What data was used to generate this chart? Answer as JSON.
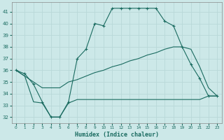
{
  "xlabel": "Humidex (Indice chaleur)",
  "bg_color": "#cce8e8",
  "grid_color": "#b8d8d8",
  "line_color": "#1a6b60",
  "xlim": [
    -0.5,
    23.5
  ],
  "ylim": [
    31.5,
    41.8
  ],
  "yticks": [
    32,
    33,
    34,
    35,
    36,
    37,
    38,
    39,
    40,
    41
  ],
  "xticks": [
    0,
    1,
    2,
    3,
    4,
    5,
    6,
    7,
    8,
    9,
    10,
    11,
    12,
    13,
    14,
    15,
    16,
    17,
    18,
    19,
    20,
    21,
    22,
    23
  ],
  "series": [
    {
      "x": [
        0,
        1,
        2,
        3,
        4,
        5,
        6,
        7,
        8,
        9,
        10,
        11,
        12,
        13,
        14,
        15,
        16,
        17,
        18,
        19,
        20,
        21,
        22,
        23
      ],
      "y": [
        36.0,
        35.7,
        34.8,
        33.3,
        32.0,
        32.0,
        33.3,
        37.0,
        37.8,
        40.0,
        39.8,
        41.3,
        41.3,
        41.3,
        41.3,
        41.3,
        41.3,
        40.2,
        39.8,
        38.0,
        36.5,
        35.3,
        33.8,
        33.8
      ],
      "marker": "+"
    },
    {
      "x": [
        0,
        1,
        2,
        3,
        4,
        5,
        6,
        7,
        8,
        9,
        10,
        11,
        12,
        13,
        14,
        15,
        16,
        17,
        18,
        19,
        20,
        21,
        22,
        23
      ],
      "y": [
        36.0,
        35.5,
        35.0,
        34.5,
        34.5,
        34.5,
        35.0,
        35.2,
        35.5,
        35.8,
        36.0,
        36.3,
        36.5,
        36.8,
        37.0,
        37.3,
        37.5,
        37.8,
        38.0,
        38.0,
        37.8,
        36.3,
        34.5,
        33.8
      ],
      "marker": null
    },
    {
      "x": [
        0,
        1,
        2,
        3,
        4,
        5,
        6,
        7,
        8,
        9,
        10,
        11,
        12,
        13,
        14,
        15,
        16,
        17,
        18,
        19,
        20,
        21,
        22,
        23
      ],
      "y": [
        36.0,
        35.5,
        33.3,
        33.2,
        32.0,
        32.0,
        33.2,
        33.5,
        33.5,
        33.5,
        33.5,
        33.5,
        33.5,
        33.5,
        33.5,
        33.5,
        33.5,
        33.5,
        33.5,
        33.5,
        33.5,
        33.5,
        33.8,
        33.8
      ],
      "marker": null
    }
  ]
}
